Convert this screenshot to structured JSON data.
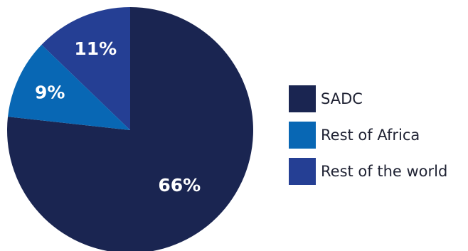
{
  "chart_data": {
    "type": "pie",
    "series": [
      {
        "name": "SADC",
        "value": 66,
        "label": "66%",
        "color": "#1a2551"
      },
      {
        "name": "Rest of the world",
        "value": 11,
        "label": "11%",
        "color": "#253f94"
      },
      {
        "name": "Rest of Africa",
        "value": 9,
        "label": "9%",
        "color": "#0867b4"
      }
    ],
    "legend_position": "right"
  },
  "legend": {
    "items": [
      {
        "label": "SADC",
        "color": "#1a2551"
      },
      {
        "label": "Rest of Africa",
        "color": "#0867b4"
      },
      {
        "label": "Rest of the world",
        "color": "#253f94"
      }
    ]
  }
}
